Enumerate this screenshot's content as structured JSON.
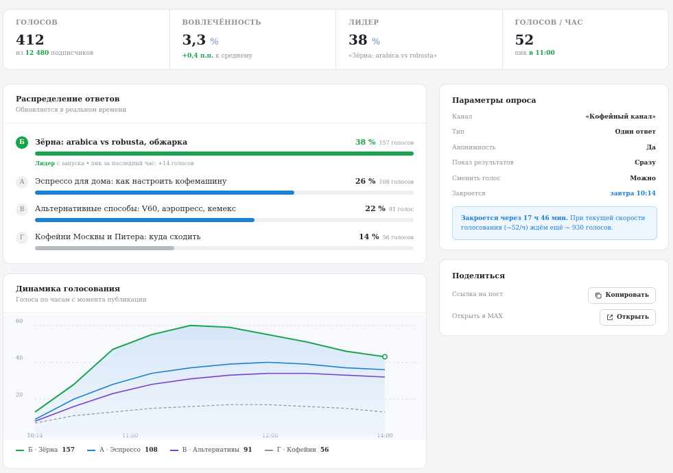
{
  "stats": [
    {
      "label": "ГОЛОСОВ",
      "value": "412",
      "unit": "",
      "sub_prefix": "из ",
      "sub_highlight": "12 480",
      "sub_suffix": " подписчиков"
    },
    {
      "label": "ВОВЛЕЧЁННОСТЬ",
      "value": "3,3",
      "unit": "%",
      "sub_prefix": "",
      "sub_highlight": "+0,4 п.п.",
      "sub_suffix": " к среднему"
    },
    {
      "label": "ЛИДЕР",
      "value": "38",
      "unit": "%",
      "sub_prefix": "«Зёрна: arabica vs robusta»",
      "sub_highlight": "",
      "sub_suffix": ""
    },
    {
      "label": "ГОЛОСОВ / ЧАС",
      "value": "52",
      "unit": "",
      "sub_prefix": "пик ",
      "sub_highlight": "в 11:00",
      "sub_suffix": ""
    }
  ],
  "distribution": {
    "title": "Распределение ответов",
    "subtitle": "Обновляется в реальном времени",
    "lead_label": "Лидер",
    "lead_meta": " с запуска  •  пик за последний час: +14 голосов",
    "options": [
      {
        "letter": "Б",
        "text": "Зёрна: arabica vs robusta, обжарка",
        "pct": "38 %",
        "count": "157 голосов",
        "fraction": 1.0,
        "color": "#16a34a"
      },
      {
        "letter": "А",
        "text": "Эспрессо для дома: как настроить кофемашину",
        "pct": "26 %",
        "count": "108 голосов",
        "fraction": 0.684,
        "color": "#1d7fd1"
      },
      {
        "letter": "В",
        "text": "Альтернативные способы: V60, аэропресс, кемекс",
        "pct": "22 %",
        "count": "91 голос",
        "fraction": 0.579,
        "color": "#1d7fd1"
      },
      {
        "letter": "Г",
        "text": "Кофейни Москвы и Питера: куда сходить",
        "pct": "14 %",
        "count": "56 голосов",
        "fraction": 0.368,
        "color": "#b4bac2"
      }
    ]
  },
  "dynamics": {
    "title": "Динамика голосования",
    "subtitle": "Голоса по часам с момента публикации",
    "legend": [
      {
        "name": "Б · Зёрна",
        "count": "157",
        "color": "#16a34a"
      },
      {
        "name": "А · Эспрессо",
        "count": "108",
        "color": "#1d7fd1"
      },
      {
        "name": "В · Альтернативы",
        "count": "91",
        "color": "#7b3fd0"
      },
      {
        "name": "Г · Кофейни",
        "count": "56",
        "color": "#8a919b"
      }
    ]
  },
  "chart_data": {
    "type": "line",
    "x_ticks": [
      "10:14",
      "11:00",
      "12:00",
      "14:00"
    ],
    "y_ticks": [
      20,
      40,
      60
    ],
    "ylim": [
      0,
      64
    ],
    "x": [
      0,
      1,
      2,
      3,
      4,
      5,
      6,
      7,
      8,
      9
    ],
    "series": [
      {
        "name": "Б · Зёрна",
        "color": "#16a34a",
        "values": [
          13,
          28,
          47,
          55,
          60,
          59,
          55,
          51,
          46,
          43
        ]
      },
      {
        "name": "А · Эспрессо",
        "color": "#1d7fd1",
        "values": [
          9,
          20,
          28,
          34,
          37,
          39,
          40,
          39,
          37,
          36
        ]
      },
      {
        "name": "В · Альтернативы",
        "color": "#7b3fd0",
        "values": [
          8,
          16,
          23,
          28,
          31,
          33,
          34,
          34,
          33,
          32
        ]
      },
      {
        "name": "Г · Кофейни",
        "color": "#8a919b",
        "values": [
          7,
          11,
          13,
          15,
          16,
          17,
          17,
          16,
          15,
          13
        ]
      }
    ]
  },
  "params": {
    "title": "Параметры опроса",
    "rows": [
      {
        "key": "Канал",
        "value": "«Кофейный канал»"
      },
      {
        "key": "Тип",
        "value": "Один ответ"
      },
      {
        "key": "Анонимность",
        "value": "Да"
      },
      {
        "key": "Показ результатов",
        "value": "Сразу"
      },
      {
        "key": "Сменить голос",
        "value": "Можно"
      },
      {
        "key": "Закроется",
        "value": "завтра 10:14"
      }
    ],
    "notice_bold": "Закроется через 17 ч 46 мин.",
    "notice_text": " При текущей скорости голосования (~52/ч) ждём ещё ~ 930 голосов."
  },
  "share": {
    "title": "Поделиться",
    "link_label": "Ссылка на пост",
    "copy_button": "Копировать",
    "open_label": "Открыть в MAX",
    "open_button": "Открыть"
  }
}
